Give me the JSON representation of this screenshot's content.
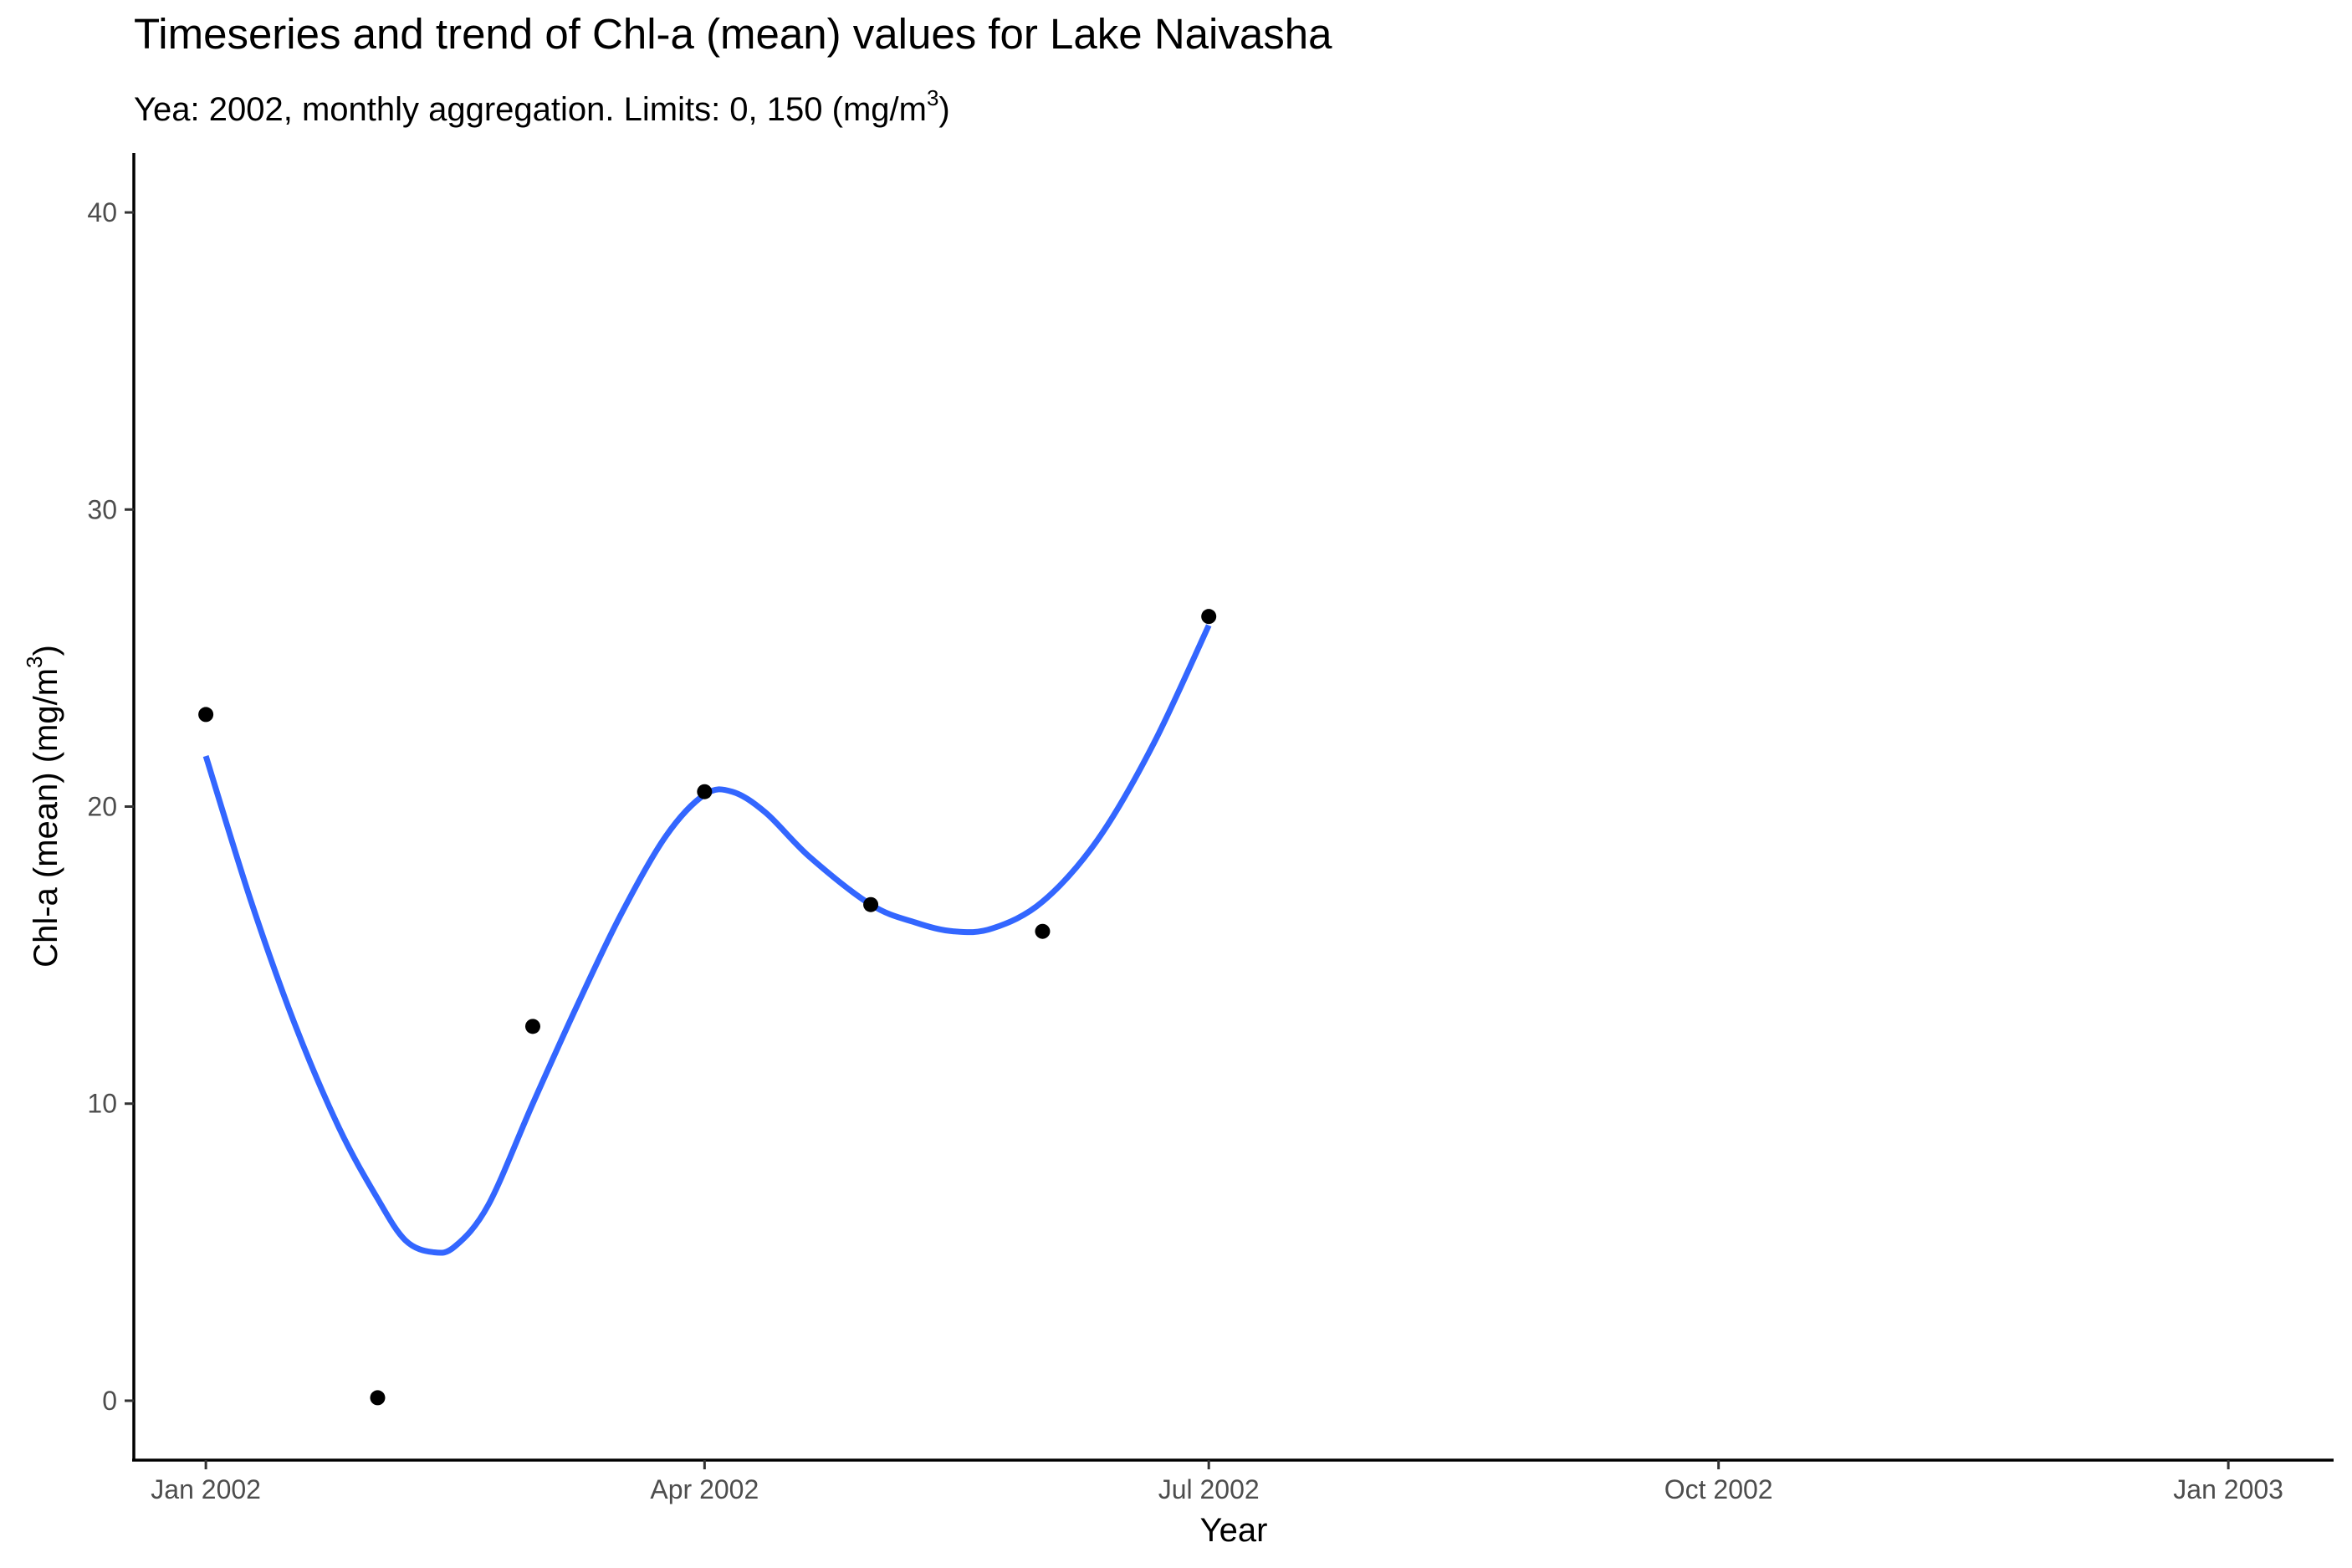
{
  "chart_data": {
    "type": "scatter",
    "title": "Timeseries and trend of Chl-a (mean) values for Lake Naivasha",
    "subtitle_main": "Yea: 2002, monthly aggregation. Limits: 0, 150 (mg/m",
    "subtitle_sup": "3",
    "subtitle_end": ")",
    "xlabel": "Year",
    "ylabel_main": "Chl-a (mean) (mg/m",
    "ylabel_sup": "3",
    "ylabel_end": ")",
    "x_ticks": [
      {
        "date": "2002-01-01",
        "label": "Jan 2002"
      },
      {
        "date": "2002-04-01",
        "label": "Apr 2002"
      },
      {
        "date": "2002-07-01",
        "label": "Jul 2002"
      },
      {
        "date": "2002-10-01",
        "label": "Oct 2002"
      },
      {
        "date": "2003-01-01",
        "label": "Jan 2003"
      }
    ],
    "y_ticks": [
      0,
      10,
      20,
      30,
      40
    ],
    "xlim": [
      "2001-12-19",
      "2003-01-20"
    ],
    "ylim": [
      -2,
      42
    ],
    "grid": false,
    "series": [
      {
        "kind": "points",
        "color": "#000000",
        "points": [
          {
            "x": "2002-01-01",
            "y": 23.1
          },
          {
            "x": "2002-02-01",
            "y": 0.1
          },
          {
            "x": "2002-03-01",
            "y": 12.6
          },
          {
            "x": "2002-04-01",
            "y": 20.5
          },
          {
            "x": "2002-05-01",
            "y": 16.7
          },
          {
            "x": "2002-06-01",
            "y": 15.8
          },
          {
            "x": "2002-07-01",
            "y": 26.4
          }
        ]
      },
      {
        "kind": "trend",
        "color": "#3366ff",
        "points": [
          {
            "x": "2002-01-01",
            "y": 21.7
          },
          {
            "x": "2002-01-09",
            "y": 16.9
          },
          {
            "x": "2002-01-17",
            "y": 12.7
          },
          {
            "x": "2002-01-25",
            "y": 9.2
          },
          {
            "x": "2002-02-01",
            "y": 6.8
          },
          {
            "x": "2002-02-06",
            "y": 5.4
          },
          {
            "x": "2002-02-11",
            "y": 5.0
          },
          {
            "x": "2002-02-15",
            "y": 5.2
          },
          {
            "x": "2002-02-21",
            "y": 6.6
          },
          {
            "x": "2002-03-01",
            "y": 10.0
          },
          {
            "x": "2002-03-09",
            "y": 13.3
          },
          {
            "x": "2002-03-17",
            "y": 16.4
          },
          {
            "x": "2002-03-25",
            "y": 19.0
          },
          {
            "x": "2002-04-01",
            "y": 20.4
          },
          {
            "x": "2002-04-06",
            "y": 20.5
          },
          {
            "x": "2002-04-12",
            "y": 19.8
          },
          {
            "x": "2002-04-20",
            "y": 18.3
          },
          {
            "x": "2002-05-01",
            "y": 16.7
          },
          {
            "x": "2002-05-09",
            "y": 16.1
          },
          {
            "x": "2002-05-16",
            "y": 15.8
          },
          {
            "x": "2002-05-23",
            "y": 15.9
          },
          {
            "x": "2002-06-01",
            "y": 16.8
          },
          {
            "x": "2002-06-11",
            "y": 18.9
          },
          {
            "x": "2002-06-21",
            "y": 22.1
          },
          {
            "x": "2002-07-01",
            "y": 26.1
          }
        ]
      }
    ]
  }
}
